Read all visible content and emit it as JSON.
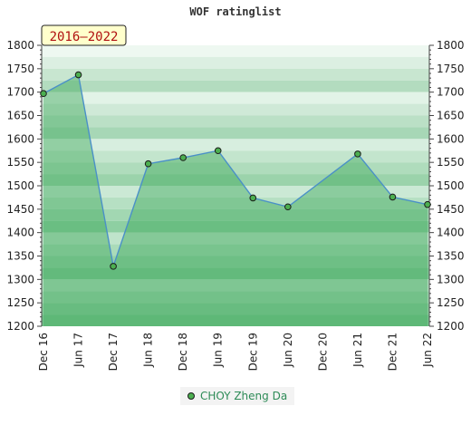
{
  "chart_data": {
    "type": "line",
    "title": "WOF ratinglist",
    "badge": "2016–2022",
    "xlabel": "",
    "ylabel": "",
    "ylim": [
      1200,
      1800
    ],
    "yticks": [
      1200,
      1250,
      1300,
      1350,
      1400,
      1450,
      1500,
      1550,
      1600,
      1650,
      1700,
      1750,
      1800
    ],
    "xticks": [
      "Dec 16",
      "Jun 17",
      "Dec 17",
      "Jun 18",
      "Dec 18",
      "Jun 19",
      "Dec 19",
      "Jun 20",
      "Dec 20",
      "Jun 21",
      "Dec 21",
      "Jun 22"
    ],
    "grid": false,
    "legend": "bottom-center",
    "series": [
      {
        "name": "CHOY Zheng Da",
        "color": "#4caf50",
        "points": [
          {
            "x": "Dec 16",
            "y": 1697
          },
          {
            "x": "Jun 17",
            "y": 1737
          },
          {
            "x": "Dec 17",
            "y": 1328
          },
          {
            "x": "Jun 18",
            "y": 1547
          },
          {
            "x": "Dec 18",
            "y": 1560
          },
          {
            "x": "Jun 19",
            "y": 1575
          },
          {
            "x": "Dec 19",
            "y": 1474
          },
          {
            "x": "Jun 20",
            "y": 1455
          },
          {
            "x": "Jun 21",
            "y": 1568
          },
          {
            "x": "Dec 21",
            "y": 1476
          },
          {
            "x": "Jun 22",
            "y": 1460
          }
        ]
      }
    ]
  }
}
